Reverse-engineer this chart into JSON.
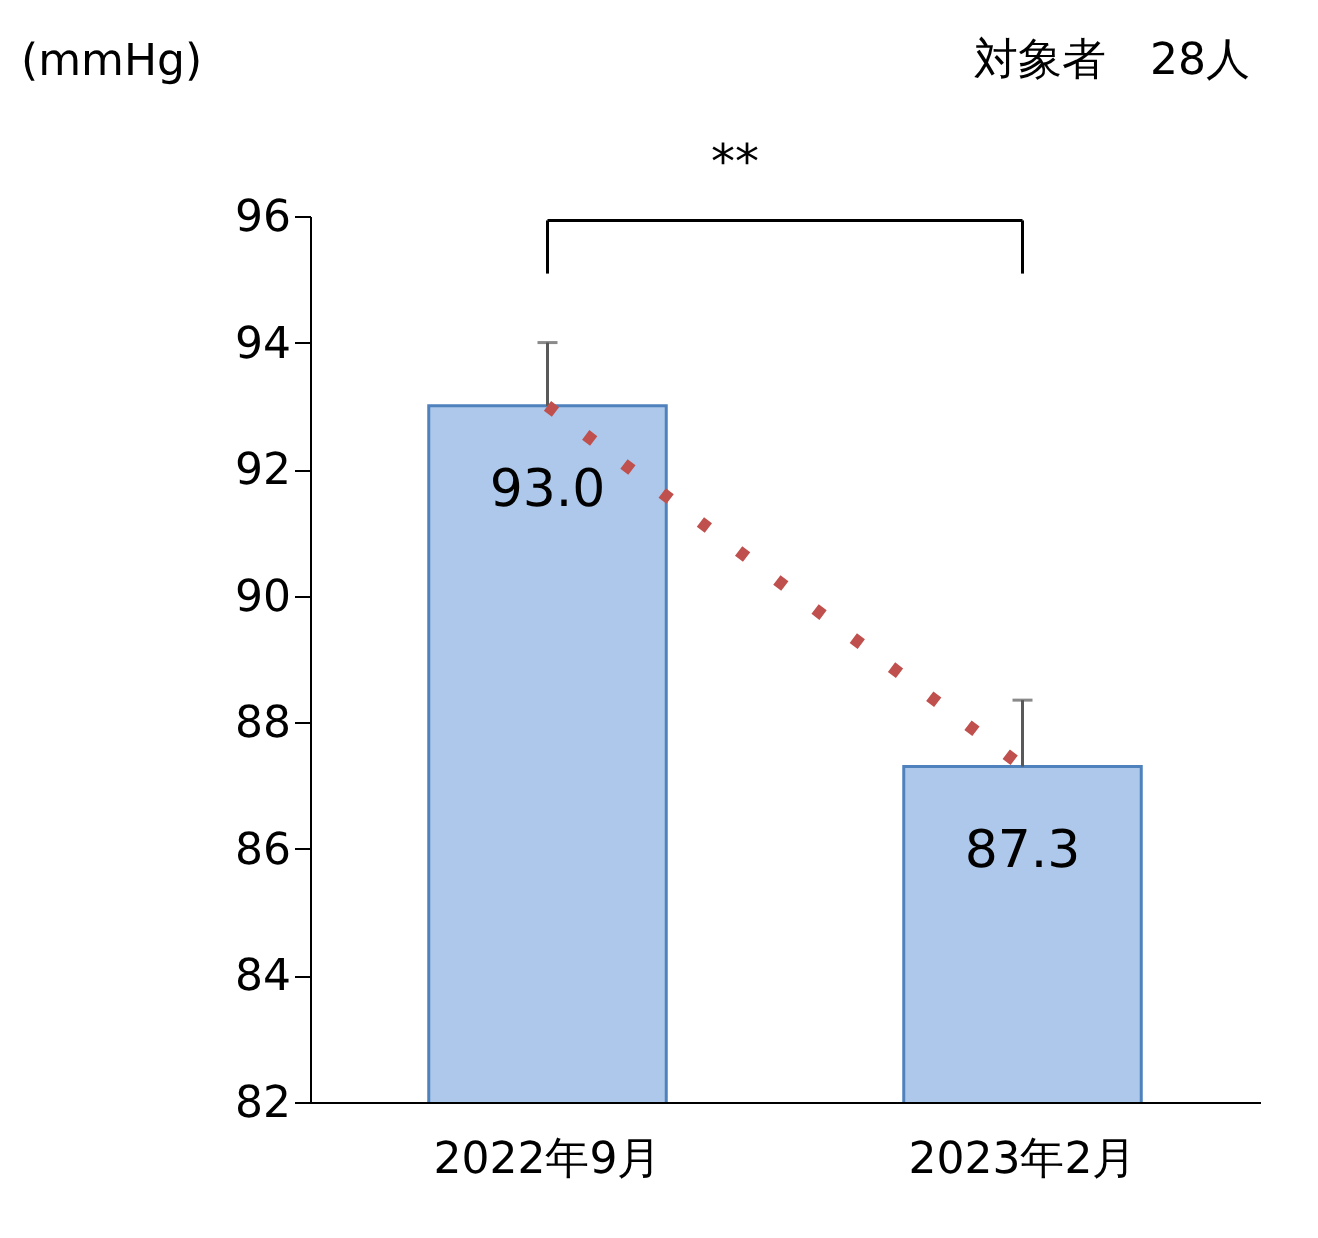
{
  "chart_data": {
    "type": "bar",
    "ylabel": "(mmHg)",
    "annotations": [
      "対象者　28人",
      "**"
    ],
    "categories": [
      "2022年9月",
      "2023年2月"
    ],
    "series": [
      {
        "color": "#adc8ea",
        "values": [
          93.0,
          87.3
        ],
        "errors": [
          [
            93.0,
            94.0
          ],
          [
            87.3,
            88.35
          ]
        ],
        "value_labels": [
          "93.0",
          "87.3"
        ]
      },
      {
        "type": "line",
        "color": "#c0504d",
        "values": [
          93.0,
          87.3
        ],
        "line_style": "dotted",
        "marker": "none"
      }
    ],
    "ylim": [
      82,
      96
    ],
    "yticks": [
      82,
      84,
      86,
      88,
      90,
      92,
      94,
      96
    ],
    "grid": false
  }
}
